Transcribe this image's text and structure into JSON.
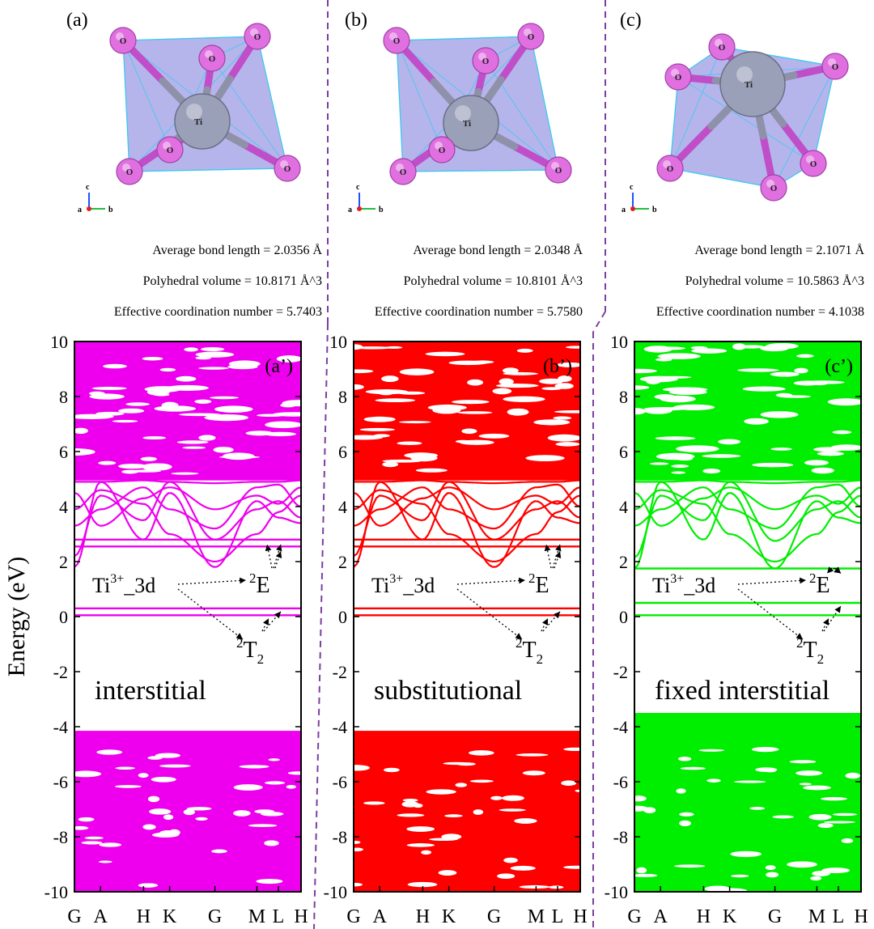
{
  "panels_top": [
    {
      "label": "(a)",
      "bond": "Average bond length = 2.0356 Å",
      "volume": "Polyhedral volume = 10.8171 Å^3",
      "coord": "Effective coordination number = 5.7403"
    },
    {
      "label": "(b)",
      "bond": "Average bond length = 2.0348 Å",
      "volume": "Polyhedral volume = 10.8101 Å^3",
      "coord": "Effective coordination number = 5.7580"
    },
    {
      "label": "(c)",
      "bond": "Average bond length = 2.1071 Å",
      "volume": "Polyhedral volume = 10.5863 Å^3",
      "coord": "Effective coordination number = 4.1038"
    }
  ],
  "atoms": {
    "center": "Ti",
    "ligand": "O"
  },
  "axes_triad": {
    "c": "c",
    "a": "a",
    "b": "b"
  },
  "colors": {
    "magenta": "#ee00ee",
    "red": "#ff0000",
    "green": "#00ee00",
    "polyhedron": "#9c9ce6",
    "oxygen": "#e070e0",
    "titanium": "#9aa0b8",
    "divider": "#7b3fa0"
  },
  "chart_data": [
    {
      "type": "line",
      "panel_label": "(a’)",
      "name": "interstitial",
      "color": "#ee00ee",
      "ylabel": "Energy (eV)",
      "ylim": [
        -10,
        10
      ],
      "yticks": [
        10,
        8,
        6,
        4,
        2,
        0,
        -2,
        -4,
        -6,
        -8,
        -10
      ],
      "xticks": [
        "G",
        "A",
        "H",
        "K",
        "G",
        "M",
        "L",
        "H"
      ],
      "valence_band_top": -4.15,
      "conduction_band_min": 1.8,
      "defect_levels_T2": [
        0.05,
        0.3
      ],
      "defect_levels_E": [
        2.55,
        2.8
      ],
      "annot_ti": "Ti",
      "annot_ti_sup": "3+",
      "annot_ti_rest": "_3d",
      "annot_E_sup": "2",
      "annot_E": "E",
      "annot_T_sup": "2",
      "annot_T": "T",
      "annot_T_sub": "2"
    },
    {
      "type": "line",
      "panel_label": "(b’)",
      "name": "substitutional",
      "color": "#ff0000",
      "ylim": [
        -10,
        10
      ],
      "yticks": [
        10,
        8,
        6,
        4,
        2,
        0,
        -2,
        -4,
        -6,
        -8,
        -10
      ],
      "xticks": [
        "G",
        "A",
        "H",
        "K",
        "G",
        "M",
        "L",
        "H"
      ],
      "valence_band_top": -4.15,
      "conduction_band_min": 1.8,
      "defect_levels_T2": [
        0.05,
        0.3
      ],
      "defect_levels_E": [
        2.55,
        2.8
      ],
      "annot_ti": "Ti",
      "annot_ti_sup": "3+",
      "annot_ti_rest": "_3d",
      "annot_E_sup": "2",
      "annot_E": "E",
      "annot_T_sup": "2",
      "annot_T": "T",
      "annot_T_sub": "2"
    },
    {
      "type": "line",
      "panel_label": "(c’)",
      "name": "fixed interstitial",
      "color": "#00ee00",
      "ylim": [
        -10,
        10
      ],
      "yticks": [
        10,
        8,
        6,
        4,
        2,
        0,
        -2,
        -4,
        -6,
        -8,
        -10
      ],
      "xticks": [
        "G",
        "A",
        "H",
        "K",
        "G",
        "M",
        "L",
        "H"
      ],
      "valence_band_top": -3.5,
      "conduction_band_min": 1.75,
      "defect_levels_T2": [
        0.05,
        0.5
      ],
      "defect_levels_E": [
        1.75
      ],
      "annot_ti": "Ti",
      "annot_ti_sup": "3+",
      "annot_ti_rest": "_3d",
      "annot_E_sup": "2",
      "annot_E": "E",
      "annot_T_sup": "2",
      "annot_T": "T",
      "annot_T_sub": "2"
    }
  ]
}
